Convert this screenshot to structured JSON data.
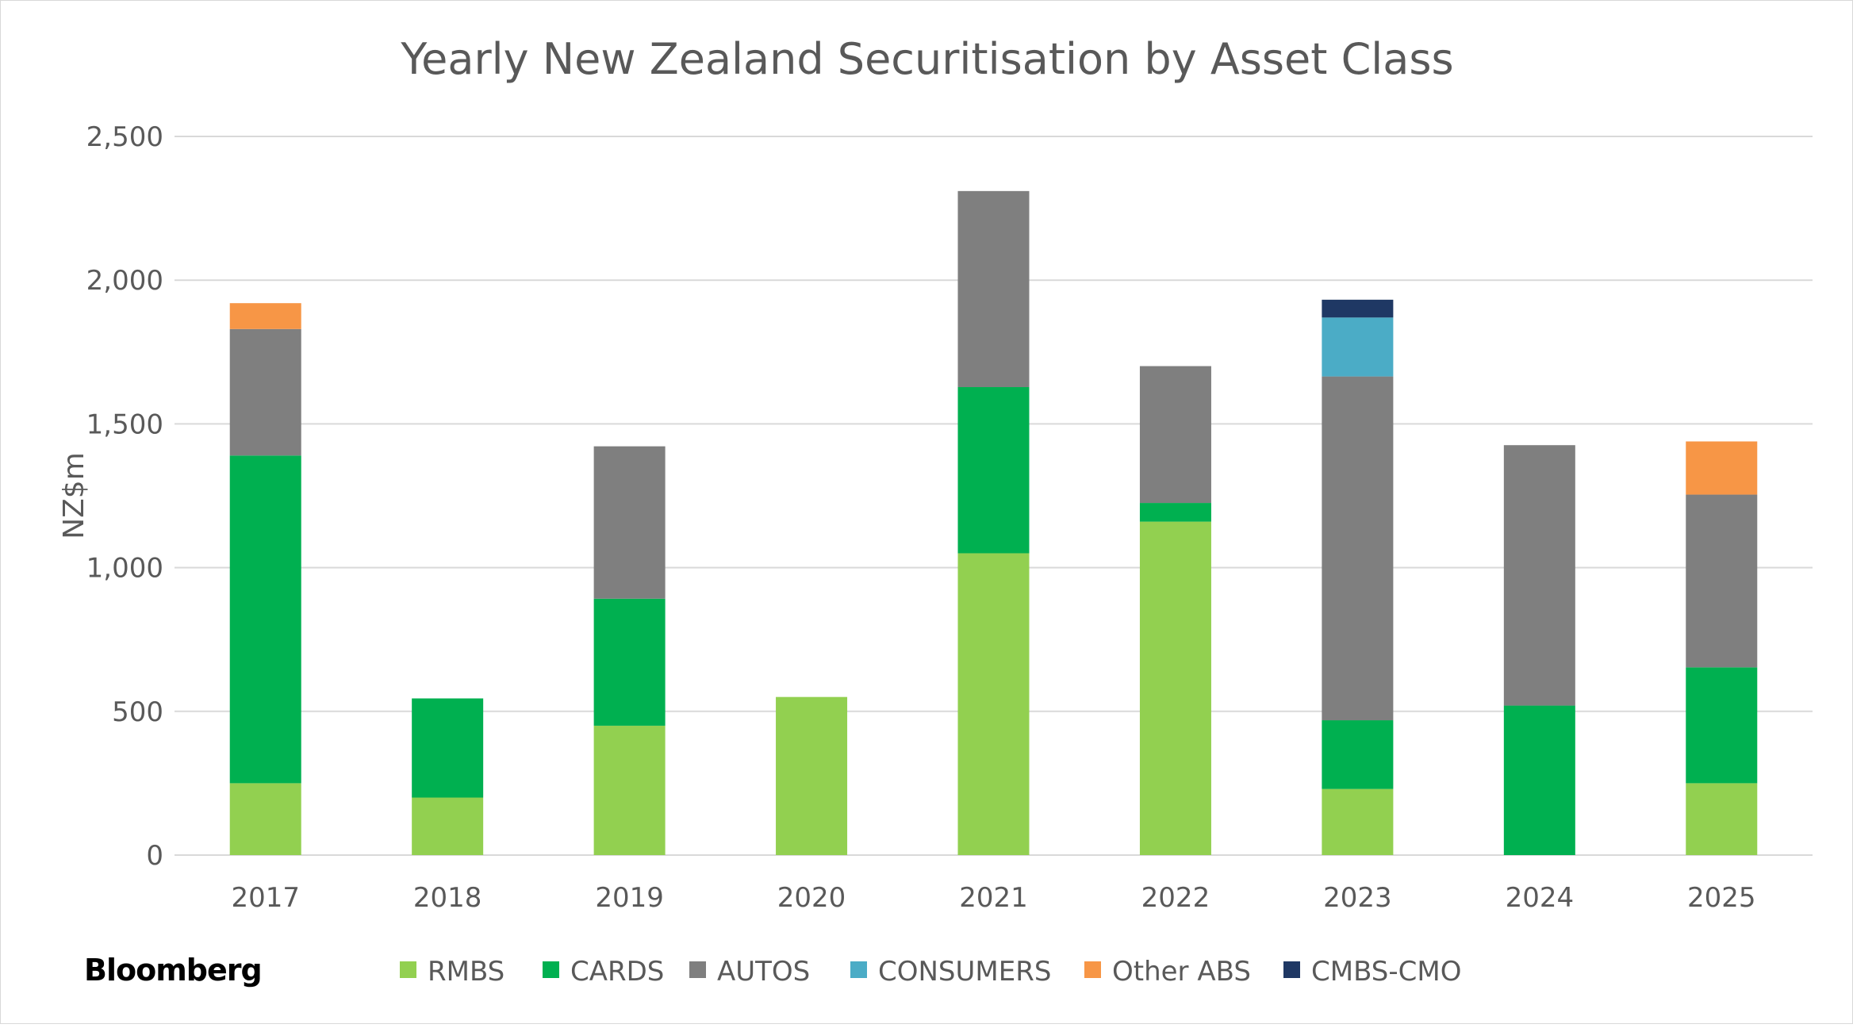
{
  "chart_data": {
    "type": "bar",
    "stacked": true,
    "title": "Yearly New Zealand Securitisation by Asset Class",
    "xlabel": "",
    "ylabel": "NZ$m",
    "ylim": [
      0,
      2500
    ],
    "yticks": [
      0,
      500,
      1000,
      1500,
      2000,
      2500
    ],
    "ytick_labels": [
      "0",
      "500",
      "1,000",
      "1,500",
      "2,000",
      "2,500"
    ],
    "grid": true,
    "legend_position": "bottom",
    "categories": [
      "2017",
      "2018",
      "2019",
      "2020",
      "2021",
      "2022",
      "2023",
      "2024",
      "2025"
    ],
    "series": [
      {
        "name": "RMBS",
        "color": "#92d050",
        "values": [
          250,
          200,
          450,
          550,
          1050,
          1160,
          230,
          0,
          250
        ]
      },
      {
        "name": "CARDS",
        "color": "#00b050",
        "values": [
          1140,
          345,
          442,
          0,
          578,
          65,
          239,
          520,
          403
        ]
      },
      {
        "name": "AUTOS",
        "color": "#7f7f7f",
        "values": [
          440,
          0,
          530,
          0,
          682,
          476,
          1196,
          906,
          601
        ]
      },
      {
        "name": "CONSUMERS",
        "color": "#4bacc6",
        "values": [
          0,
          0,
          0,
          0,
          0,
          0,
          205,
          0,
          0
        ]
      },
      {
        "name": "Other ABS",
        "color": "#f79646",
        "values": [
          90,
          0,
          0,
          0,
          0,
          0,
          0,
          0,
          185
        ]
      },
      {
        "name": "CMBS-CMO",
        "color": "#1f3864",
        "values": [
          0,
          0,
          0,
          0,
          0,
          0,
          62,
          0,
          0
        ]
      }
    ]
  },
  "logo": "Bloomberg"
}
